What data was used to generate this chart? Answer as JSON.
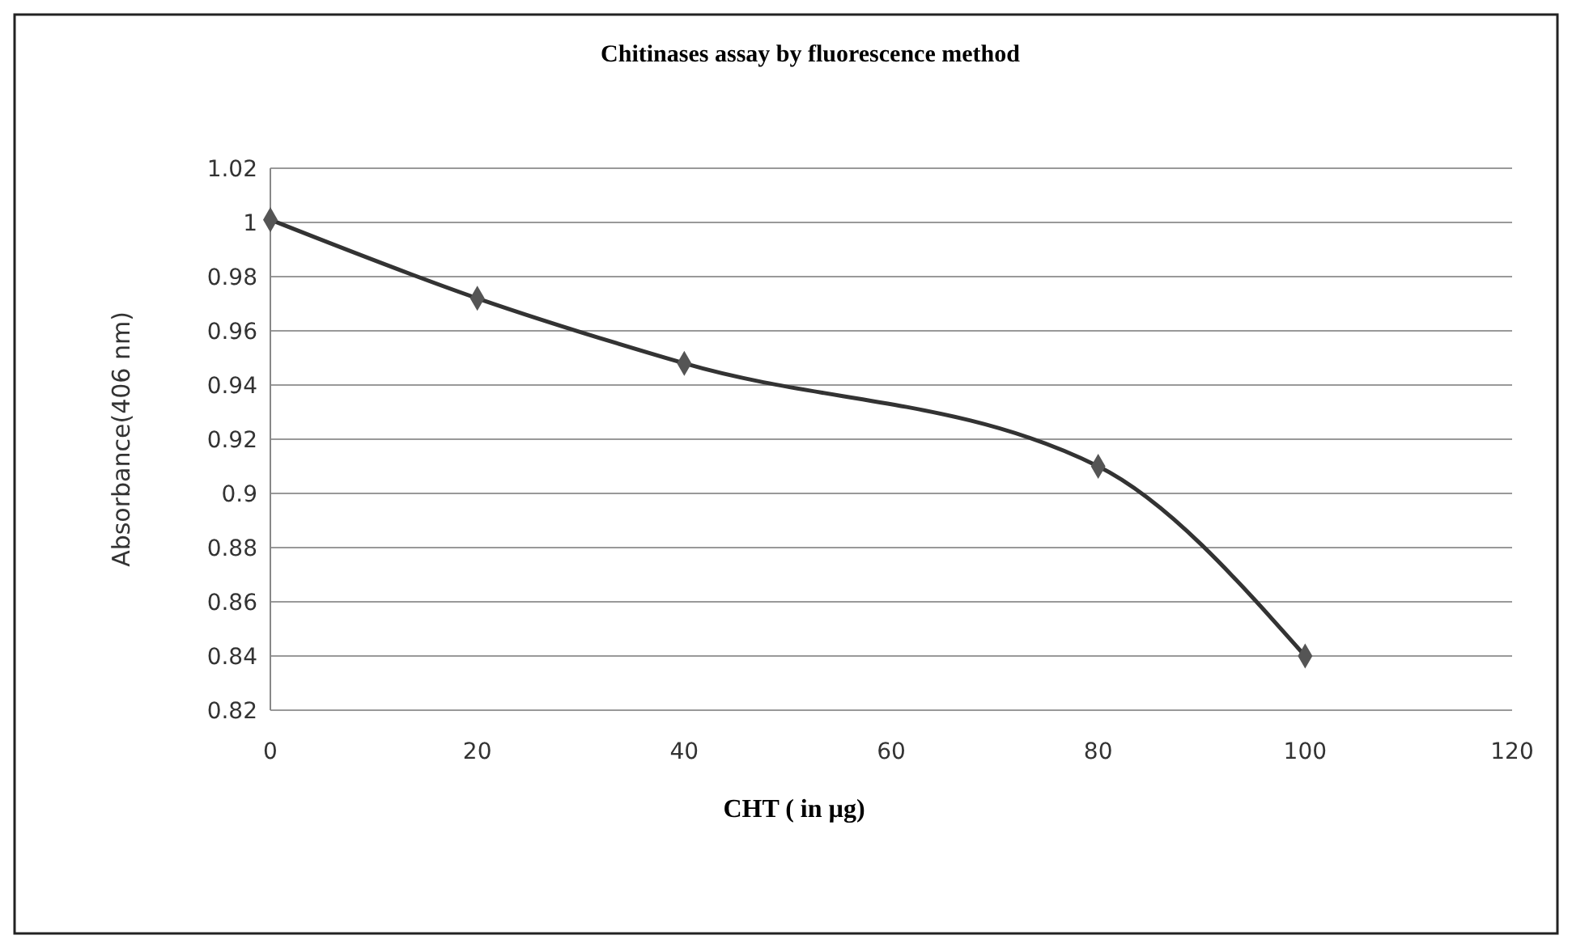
{
  "chart_data": {
    "type": "line",
    "title": "Chitinases assay by fluorescence method",
    "xlabel": "CHT ( in µg)",
    "ylabel": "Absorbance(406 nm)",
    "x": [
      0,
      20,
      40,
      80,
      100
    ],
    "series": [
      {
        "color": "#333333",
        "values": [
          1.001,
          0.972,
          0.948,
          0.91,
          0.84
        ]
      }
    ],
    "xlim": [
      0,
      120
    ],
    "xticks": [
      0,
      20,
      40,
      60,
      80,
      100,
      120
    ],
    "ylim": [
      0.82,
      1.02
    ],
    "yticks": [
      0.82,
      0.84,
      0.86,
      0.88,
      0.9,
      0.92,
      0.94,
      0.96,
      0.98,
      1,
      1.02
    ],
    "grid": "y",
    "marker": "diamond",
    "line_style": "solid"
  }
}
